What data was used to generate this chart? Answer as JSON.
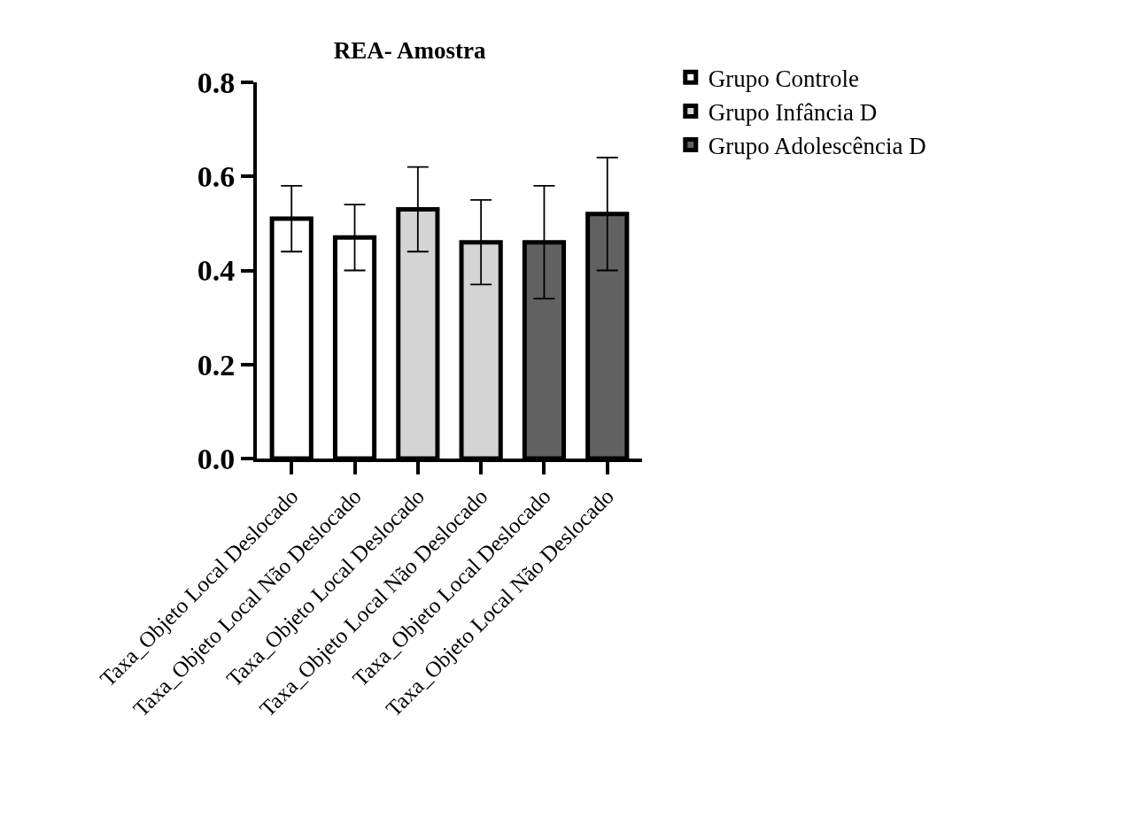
{
  "chart_data": {
    "type": "bar",
    "title": "REA- Amostra",
    "categories": [
      "Taxa_Objeto Local Deslocado",
      "Taxa_Objeto Local Não Deslocado",
      "Taxa_Objeto Local Deslocado",
      "Taxa_Objeto Local Não Deslocado",
      "Taxa_Objeto Local Deslocado",
      "Taxa_Objeto Local Não Deslocado"
    ],
    "series": [
      {
        "name": "Grupo Controle",
        "color": "#ffffff",
        "values": [
          0.51,
          0.47,
          null,
          null,
          null,
          null
        ],
        "errors": [
          0.07,
          0.07,
          null,
          null,
          null,
          null
        ]
      },
      {
        "name": "Grupo Infância D",
        "color": "#d4d4d4",
        "values": [
          null,
          null,
          0.53,
          0.46,
          null,
          null
        ],
        "errors": [
          null,
          null,
          0.09,
          0.09,
          null,
          null
        ]
      },
      {
        "name": "Grupo Adolescência D",
        "color": "#616161",
        "values": [
          null,
          null,
          null,
          null,
          0.46,
          0.52
        ],
        "errors": [
          null,
          null,
          null,
          null,
          0.12,
          0.12
        ]
      }
    ],
    "ylim": [
      0,
      0.8
    ],
    "yticks": [
      {
        "value": 0,
        "label": "0.0"
      },
      {
        "value": 0.2,
        "label": "0.2"
      },
      {
        "value": 0.4,
        "label": "0.4"
      },
      {
        "value": 0.6,
        "label": "0.6"
      },
      {
        "value": 0.8,
        "label": "0.8"
      }
    ],
    "legend": "top right",
    "grid": false
  }
}
